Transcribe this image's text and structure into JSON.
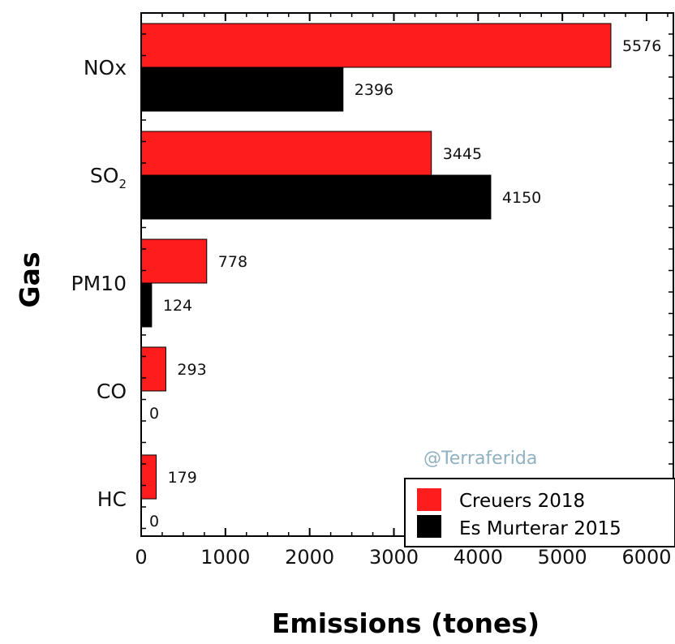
{
  "chart_data": {
    "type": "bar",
    "orientation": "horizontal",
    "categories": [
      "NOx",
      "SO2",
      "PM10",
      "CO",
      "HC"
    ],
    "series": [
      {
        "name": "Creuers 2018",
        "color": "#ff1c1c",
        "values": [
          5576,
          3445,
          778,
          293,
          179
        ]
      },
      {
        "name": "Es Murterar 2015",
        "color": "#000000",
        "values": [
          2396,
          4150,
          124,
          0,
          0
        ]
      }
    ],
    "data_labels": [
      [
        "5576",
        "3445",
        "778",
        "293",
        "179"
      ],
      [
        "2396",
        "4150",
        "124",
        "0",
        "0"
      ]
    ],
    "xlabel": "Emissions (tones)",
    "ylabel": "Gas",
    "xlim": [
      0,
      6500
    ],
    "xticks": [
      "0",
      "1000",
      "2000",
      "3000",
      "4000",
      "5000",
      "6000"
    ],
    "legend_position": "bottom-right",
    "watermark": "@Terraferida",
    "grid": false
  }
}
